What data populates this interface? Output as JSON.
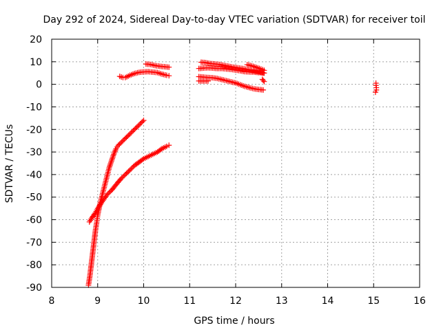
{
  "chart_data": {
    "type": "scatter",
    "title": "Day 292 of 2024, Sidereal Day-to-day VTEC variation (SDTVAR) for receiver toil",
    "xlabel": "GPS time / hours",
    "ylabel": "SDTVAR / TECUs",
    "xlim": [
      8,
      16
    ],
    "ylim": [
      -90,
      20
    ],
    "x_ticks": [
      8,
      9,
      10,
      11,
      12,
      13,
      14,
      15,
      16
    ],
    "y_ticks": [
      20,
      10,
      0,
      -10,
      -20,
      -30,
      -40,
      -50,
      -60,
      -70,
      -80,
      -90
    ],
    "grid": true,
    "marker": "plus",
    "color": "#ff0000",
    "series": [
      {
        "segments": [
          [
            [
              8.8,
              -89
            ],
            [
              8.83,
              -85
            ],
            [
              8.86,
              -80
            ],
            [
              8.89,
              -75
            ],
            [
              8.92,
              -70
            ],
            [
              8.95,
              -65
            ],
            [
              8.98,
              -61
            ],
            [
              9.0,
              -58
            ],
            [
              9.05,
              -53
            ],
            [
              9.1,
              -49
            ],
            [
              9.15,
              -45
            ],
            [
              9.2,
              -41
            ],
            [
              9.25,
              -37
            ],
            [
              9.3,
              -34
            ],
            [
              9.35,
              -31
            ],
            [
              9.4,
              -28.5
            ],
            [
              9.45,
              -27
            ],
            [
              9.5,
              -26
            ],
            [
              9.55,
              -25
            ],
            [
              9.6,
              -24
            ],
            [
              9.65,
              -23
            ],
            [
              9.7,
              -22
            ],
            [
              9.75,
              -21
            ],
            [
              9.8,
              -20
            ],
            [
              9.85,
              -19
            ],
            [
              9.9,
              -18
            ],
            [
              9.95,
              -17
            ],
            [
              10.0,
              -16
            ]
          ],
          [
            [
              8.82,
              -61
            ],
            [
              8.88,
              -59
            ],
            [
              8.95,
              -57
            ],
            [
              9.0,
              -55
            ],
            [
              9.1,
              -52
            ],
            [
              9.2,
              -49
            ],
            [
              9.3,
              -47
            ],
            [
              9.4,
              -44.5
            ],
            [
              9.5,
              -42
            ],
            [
              9.6,
              -40
            ],
            [
              9.7,
              -38
            ],
            [
              9.8,
              -36
            ],
            [
              9.9,
              -34.5
            ],
            [
              10.0,
              -33
            ],
            [
              10.1,
              -32
            ],
            [
              10.2,
              -31
            ],
            [
              10.3,
              -30
            ],
            [
              10.4,
              -28.5
            ],
            [
              10.5,
              -27.5
            ],
            [
              10.55,
              -27
            ]
          ],
          [
            [
              9.48,
              3.5
            ],
            [
              9.55,
              3
            ],
            [
              9.6,
              3
            ],
            [
              9.7,
              4
            ],
            [
              9.8,
              4.8
            ],
            [
              9.9,
              5.3
            ],
            [
              10.0,
              5.5
            ],
            [
              10.1,
              5.6
            ],
            [
              10.2,
              5.4
            ],
            [
              10.3,
              5.2
            ],
            [
              10.4,
              4.5
            ],
            [
              10.5,
              4
            ],
            [
              10.55,
              3.8
            ]
          ],
          [
            [
              10.05,
              9
            ],
            [
              10.15,
              8.8
            ],
            [
              10.25,
              8.3
            ],
            [
              10.35,
              8
            ],
            [
              10.45,
              7.8
            ],
            [
              10.55,
              7.6
            ]
          ],
          [
            [
              11.2,
              7
            ],
            [
              11.3,
              7.2
            ],
            [
              11.4,
              7.3
            ],
            [
              11.5,
              7.2
            ],
            [
              11.6,
              7
            ],
            [
              11.7,
              7
            ],
            [
              11.8,
              6.8
            ],
            [
              11.9,
              6.6
            ],
            [
              12.0,
              6.3
            ],
            [
              12.1,
              6
            ],
            [
              12.2,
              5.6
            ],
            [
              12.3,
              5.5
            ],
            [
              12.4,
              5.4
            ],
            [
              12.5,
              5.2
            ],
            [
              12.6,
              5
            ]
          ],
          [
            [
              11.25,
              9.8
            ],
            [
              11.35,
              9.6
            ],
            [
              11.45,
              9.2
            ],
            [
              11.55,
              9
            ],
            [
              11.65,
              8.8
            ],
            [
              11.75,
              8.4
            ],
            [
              11.85,
              8
            ],
            [
              11.95,
              7.6
            ],
            [
              12.05,
              7.3
            ],
            [
              12.15,
              7
            ],
            [
              12.25,
              6.6
            ],
            [
              12.35,
              6.2
            ],
            [
              12.45,
              5.8
            ],
            [
              12.55,
              5.4
            ],
            [
              12.62,
              5
            ]
          ],
          [
            [
              12.25,
              8.7
            ],
            [
              12.35,
              8.2
            ],
            [
              12.45,
              7.5
            ],
            [
              12.55,
              6.8
            ],
            [
              12.62,
              6.2
            ]
          ],
          [
            [
              11.2,
              3.4
            ],
            [
              11.3,
              3.2
            ],
            [
              11.4,
              3
            ],
            [
              11.5,
              2.9
            ],
            [
              11.6,
              2.6
            ],
            [
              11.7,
              2.1
            ],
            [
              11.8,
              1.6
            ],
            [
              11.9,
              1.1
            ],
            [
              12.0,
              0.6
            ],
            [
              12.1,
              -0.2
            ],
            [
              12.2,
              -0.9
            ],
            [
              12.3,
              -1.5
            ],
            [
              12.4,
              -2
            ],
            [
              12.5,
              -2.3
            ],
            [
              12.6,
              -2.5
            ]
          ],
          [
            [
              11.2,
              1.5
            ],
            [
              11.3,
              1.5
            ],
            [
              11.4,
              1.5
            ]
          ],
          [
            [
              12.58,
              2.2
            ],
            [
              12.62,
              1.2
            ]
          ],
          [
            [
              15.05,
              0.5
            ],
            [
              15.05,
              -0.5
            ],
            [
              15.06,
              -1.5
            ],
            [
              15.06,
              -2.5
            ],
            [
              15.04,
              -3.5
            ]
          ]
        ]
      }
    ]
  }
}
